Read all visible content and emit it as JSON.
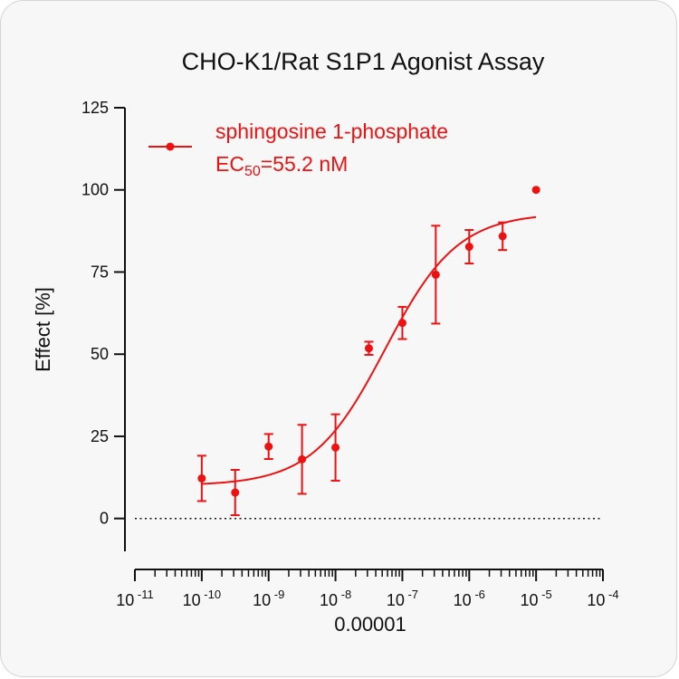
{
  "chart_data": {
    "type": "scatter",
    "title": "CHO-K1/Rat S1P1 Agonist Assay",
    "xlabel": "0.00001",
    "ylabel": "Effect  [%]",
    "x_scale": "log",
    "xlim_exponents": [
      -11,
      -4
    ],
    "x_tick_base": "10",
    "x_tick_exponents": [
      "-11",
      "-10",
      "-9",
      "-8",
      "-7",
      "-6",
      "-5",
      "-4"
    ],
    "ylim": [
      -10,
      125
    ],
    "y_ticks": [
      "0",
      "25",
      "50",
      "75",
      "100",
      "125"
    ],
    "reference_line": {
      "y": 0,
      "style": "dotted"
    },
    "color": "#ee1111",
    "legend": {
      "label": "sphingosine 1-phosphate",
      "ec_prefix": "EC",
      "ec_subscript": "50",
      "ec_value": "=55.2 nM",
      "position": "top-left"
    },
    "series": [
      {
        "name": "sphingosine 1-phosphate",
        "points": [
          {
            "x": 1e-10,
            "y": 12.2,
            "err": 6.9
          },
          {
            "x": 3.16e-10,
            "y": 7.9,
            "err": 6.9
          },
          {
            "x": 1e-09,
            "y": 21.9,
            "err": 3.8
          },
          {
            "x": 3.16e-09,
            "y": 18.0,
            "err": 10.5
          },
          {
            "x": 1e-08,
            "y": 21.6,
            "err": 10.1
          },
          {
            "x": 3.16e-08,
            "y": 51.8,
            "err": 2.0
          },
          {
            "x": 1e-07,
            "y": 59.5,
            "err": 4.9
          },
          {
            "x": 3.16e-07,
            "y": 74.2,
            "err": 14.9
          },
          {
            "x": 1e-06,
            "y": 82.7,
            "err": 5.1
          },
          {
            "x": 3.16e-06,
            "y": 85.9,
            "err": 4.2
          },
          {
            "x": 1e-05,
            "y": 100,
            "err": 0
          }
        ],
        "fit": {
          "model": "4PL",
          "bottom": 10,
          "top": 93,
          "ec50": 5.52e-08,
          "hill": 0.8,
          "x_range": [
            1e-10,
            1e-05
          ]
        }
      }
    ]
  }
}
